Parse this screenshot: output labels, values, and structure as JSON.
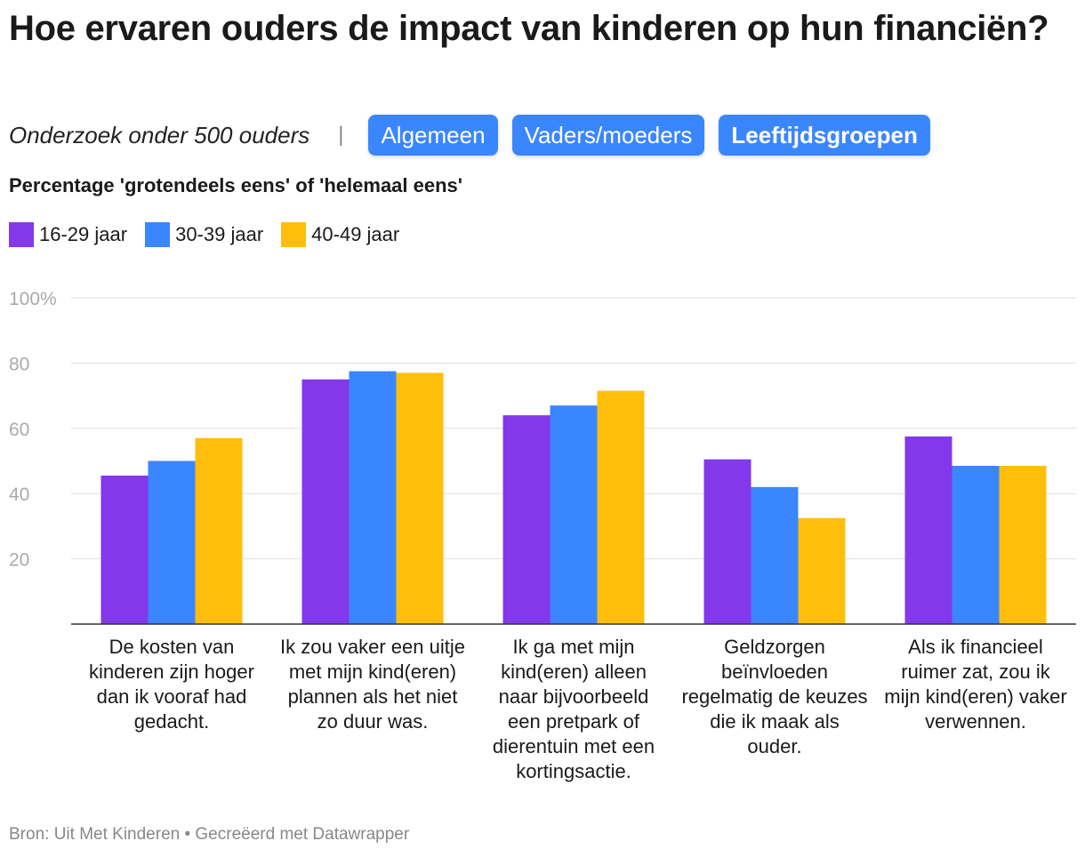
{
  "header": {
    "title": "Hoe ervaren ouders de impact van kinderen op hun financiën?",
    "subtitle": "Onderzoek onder 500 ouders",
    "separator": "|",
    "buttons": [
      {
        "label": "Algemeen",
        "active": false
      },
      {
        "label": "Vaders/moeders",
        "active": false
      },
      {
        "label": "Leeftijdsgroepen",
        "active": true
      }
    ],
    "description": "Percentage 'grotendeels eens' of 'helemaal eens'"
  },
  "footer": {
    "source": "Bron: Uit Met Kinderen • Gecreëerd met Datawrapper"
  },
  "colors": {
    "series": [
      "#8338ec",
      "#3a86ff",
      "#ffbe0b"
    ],
    "grid": "#e0e0e0",
    "axis": "#333333"
  },
  "chart_data": {
    "type": "bar",
    "title": "Hoe ervaren ouders de impact van kinderen op hun financiën?",
    "ylabel": "Percentage 'grotendeels eens' of 'helemaal eens'",
    "ylim": [
      0,
      100
    ],
    "yticks": [
      20,
      40,
      60,
      80,
      100
    ],
    "ytick_labels": [
      "20",
      "40",
      "60",
      "80",
      "100%"
    ],
    "grid": true,
    "legend_position": "top-left",
    "categories": [
      "De kosten van kinderen zijn hoger dan ik vooraf had gedacht.",
      "Ik zou vaker een uitje met mijn kind(eren) plannen als het niet zo duur was.",
      "Ik ga met mijn kind(eren) alleen naar bijvoorbeeld een pretpark of dierentuin met een kortingsactie.",
      "Geldzorgen beïnvloeden regelmatig de keuzes die ik maak als ouder.",
      "Als ik financieel ruimer zat, zou ik mijn kind(eren) vaker verwennen."
    ],
    "series": [
      {
        "name": "16-29 jaar",
        "values": [
          45.5,
          75,
          64,
          50.5,
          57.5
        ]
      },
      {
        "name": "30-39 jaar",
        "values": [
          50,
          77.5,
          67,
          42,
          48.5
        ]
      },
      {
        "name": "40-49 jaar",
        "values": [
          57,
          77,
          71.5,
          32.5,
          48.5
        ]
      }
    ]
  }
}
